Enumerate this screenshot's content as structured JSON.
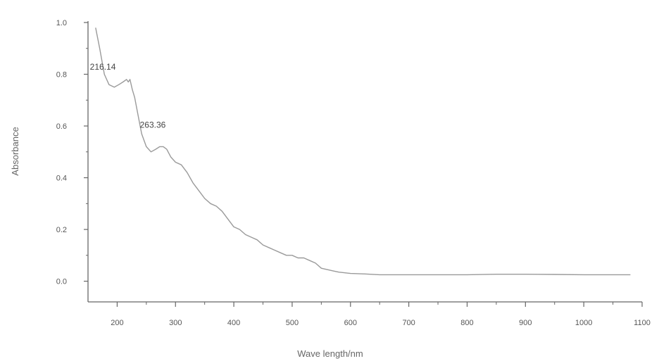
{
  "chart_data": {
    "type": "line",
    "title": "",
    "xlabel": "Wave length/nm",
    "ylabel": "Absorbance",
    "xlim": [
      150,
      1100
    ],
    "ylim": [
      -0.08,
      1.0
    ],
    "x_ticks": [
      200,
      300,
      400,
      500,
      600,
      700,
      800,
      900,
      1000,
      1100
    ],
    "x_tick_labels": [
      "200",
      "300",
      "400",
      "500",
      "600",
      "700",
      "800",
      "900",
      "1000",
      "1100"
    ],
    "y_ticks": [
      0.0,
      0.2,
      0.4,
      0.6,
      0.8,
      1.0
    ],
    "y_tick_labels": [
      "0.0",
      "0.2",
      "0.4",
      "0.6",
      "0.8",
      "1.0"
    ],
    "grid": false,
    "legend": "none",
    "line_color": "#9a9a9a",
    "annotations": [
      {
        "text": "216.14",
        "x": 216,
        "y": 0.79
      },
      {
        "text": "263.36",
        "x": 263,
        "y": 0.55
      }
    ],
    "series": [
      {
        "x": [
          163,
          170,
          178,
          186,
          195,
          203,
          210,
          216,
          219,
          222,
          226,
          230,
          236,
          242,
          250,
          258,
          266,
          273,
          279,
          285,
          292,
          300,
          310,
          320,
          330,
          340,
          350,
          360,
          370,
          380,
          390,
          400,
          410,
          420,
          430,
          440,
          450,
          460,
          470,
          480,
          490,
          500,
          510,
          520,
          530,
          540,
          550,
          560,
          570,
          580,
          600,
          625,
          650,
          700,
          750,
          800,
          850,
          900,
          950,
          1000,
          1050,
          1080
        ],
        "y": [
          0.98,
          0.9,
          0.8,
          0.76,
          0.75,
          0.76,
          0.77,
          0.78,
          0.77,
          0.78,
          0.74,
          0.71,
          0.64,
          0.57,
          0.52,
          0.5,
          0.51,
          0.52,
          0.52,
          0.51,
          0.48,
          0.46,
          0.45,
          0.42,
          0.38,
          0.35,
          0.32,
          0.3,
          0.29,
          0.27,
          0.24,
          0.21,
          0.2,
          0.18,
          0.17,
          0.16,
          0.14,
          0.13,
          0.12,
          0.11,
          0.1,
          0.1,
          0.09,
          0.09,
          0.08,
          0.07,
          0.05,
          0.045,
          0.04,
          0.035,
          0.03,
          0.028,
          0.025,
          0.025,
          0.025,
          0.025,
          0.027,
          0.027,
          0.026,
          0.025,
          0.025,
          0.025
        ]
      }
    ]
  }
}
